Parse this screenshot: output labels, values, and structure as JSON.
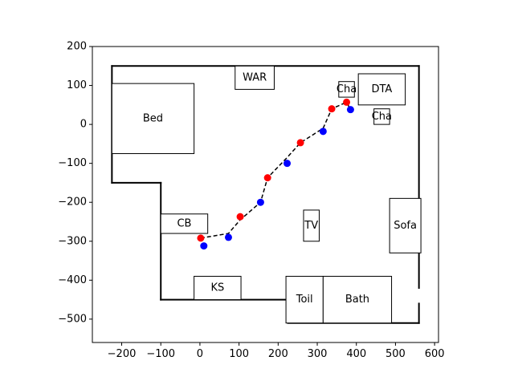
{
  "chart_data": {
    "type": "scatter",
    "title": "",
    "xlabel": "",
    "ylabel": "",
    "xlim": [
      -275,
      610
    ],
    "ylim": [
      -560,
      200
    ],
    "x_ticks": [
      -200,
      -100,
      0,
      100,
      200,
      300,
      400,
      500,
      600
    ],
    "y_ticks": [
      -500,
      -400,
      -300,
      -200,
      -100,
      0,
      100,
      200
    ],
    "grid": false,
    "legend": "none",
    "walls": [
      [
        [
          -225,
          150
        ],
        [
          560,
          150
        ]
      ],
      [
        [
          -225,
          150
        ],
        [
          -225,
          -150
        ]
      ],
      [
        [
          -225,
          -150
        ],
        [
          -100,
          -150
        ]
      ],
      [
        [
          -100,
          -150
        ],
        [
          -100,
          -450
        ]
      ],
      [
        [
          -100,
          -450
        ],
        [
          225,
          -450
        ]
      ],
      [
        [
          225,
          -510
        ],
        [
          560,
          -510
        ]
      ],
      [
        [
          560,
          150
        ],
        [
          560,
          -420
        ]
      ],
      [
        [
          560,
          -460
        ],
        [
          560,
          -510
        ]
      ]
    ],
    "furniture": [
      {
        "label": "Bed",
        "x0": -225,
        "y0": -75,
        "x1": -15,
        "y1": 105
      },
      {
        "label": "WAR",
        "x0": 90,
        "y0": 90,
        "x1": 190,
        "y1": 150
      },
      {
        "label": "Cha",
        "x0": 355,
        "y0": 70,
        "x1": 395,
        "y1": 110
      },
      {
        "label": "DTA",
        "x0": 405,
        "y0": 50,
        "x1": 525,
        "y1": 130
      },
      {
        "label": "Cha",
        "x0": 445,
        "y0": 0,
        "x1": 485,
        "y1": 40
      },
      {
        "label": "CB",
        "x0": -100,
        "y0": -280,
        "x1": 20,
        "y1": -230
      },
      {
        "label": "TV",
        "x0": 265,
        "y0": -300,
        "x1": 305,
        "y1": -220
      },
      {
        "label": "Sofa",
        "x0": 485,
        "y0": -330,
        "x1": 565,
        "y1": -190
      },
      {
        "label": "KS",
        "x0": -15,
        "y0": -450,
        "x1": 105,
        "y1": -390
      },
      {
        "label": "Toil",
        "x0": 220,
        "y0": -510,
        "x1": 315,
        "y1": -390
      },
      {
        "label": "Bath",
        "x0": 315,
        "y0": -510,
        "x1": 490,
        "y1": -390
      }
    ],
    "series": [
      {
        "color": "#ff0000",
        "x": [
          2,
          103,
          173,
          257,
          337,
          375
        ],
        "y": [
          -292,
          -237,
          -137,
          -47,
          40,
          57
        ]
      },
      {
        "color": "#0000ff",
        "x": [
          10,
          73,
          155,
          223,
          315,
          385
        ],
        "y": [
          -312,
          -290,
          -200,
          -100,
          -18,
          38
        ]
      }
    ],
    "path": {
      "style": "dashed",
      "color": "#000000",
      "x": [
        2,
        73,
        103,
        155,
        173,
        223,
        257,
        315,
        337,
        375,
        385
      ],
      "y": [
        -292,
        -280,
        -245,
        -200,
        -137,
        -85,
        -47,
        -10,
        40,
        57,
        38
      ]
    }
  }
}
